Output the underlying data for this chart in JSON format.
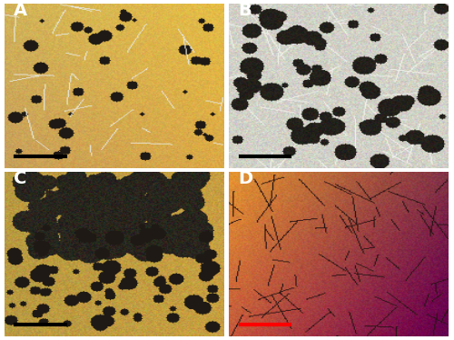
{
  "figsize": [
    5.0,
    3.74
  ],
  "dpi": 100,
  "panels": [
    {
      "label": "A",
      "bg_color_topleft": [
        220,
        195,
        130
      ],
      "bg_color_bottomright": [
        190,
        160,
        80
      ],
      "style": "yellowish",
      "scale_bar_color": "black"
    },
    {
      "label": "B",
      "bg_color_topleft": [
        200,
        200,
        190
      ],
      "bg_color_bottomright": [
        180,
        175,
        160
      ],
      "style": "grayish",
      "scale_bar_color": "black"
    },
    {
      "label": "C",
      "bg_color_topleft": [
        180,
        150,
        70
      ],
      "bg_color_bottomright": [
        160,
        130,
        60
      ],
      "style": "dark_yellow",
      "scale_bar_color": "black"
    },
    {
      "label": "D",
      "bg_color_topleft": [
        220,
        160,
        60
      ],
      "bg_color_bottomright": [
        120,
        60,
        60
      ],
      "style": "orange_red",
      "scale_bar_color": "red"
    }
  ],
  "border_color": "white",
  "border_width": 3,
  "label_color": "white",
  "label_fontsize": 14,
  "label_fontweight": "bold"
}
